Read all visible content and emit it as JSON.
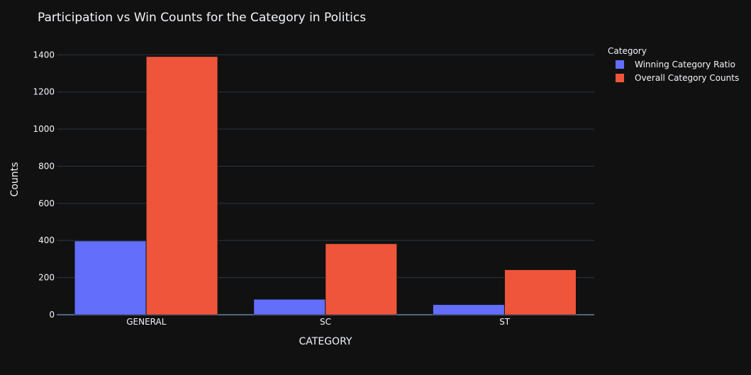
{
  "chart_data": {
    "type": "bar",
    "title": "Participation vs Win Counts for the Category in Politics",
    "xlabel": "CATEGORY",
    "ylabel": "Counts",
    "categories": [
      "GENERAL",
      "SC",
      "ST"
    ],
    "series": [
      {
        "name": "Winning Category Ratio",
        "color": "#636efa",
        "values": [
          397,
          83,
          54
        ]
      },
      {
        "name": "Overall Category Counts",
        "color": "#ef553b",
        "values": [
          1390,
          382,
          242
        ]
      }
    ],
    "ylim": [
      0,
      1405
    ],
    "yticks": [
      0,
      200,
      400,
      600,
      800,
      1000,
      1200,
      1400
    ],
    "grid": true,
    "legend": {
      "title": "Category",
      "position": "top-right"
    },
    "colors": {
      "background": "#111111",
      "grid": "#283442",
      "text": "#f2f5fa"
    }
  }
}
